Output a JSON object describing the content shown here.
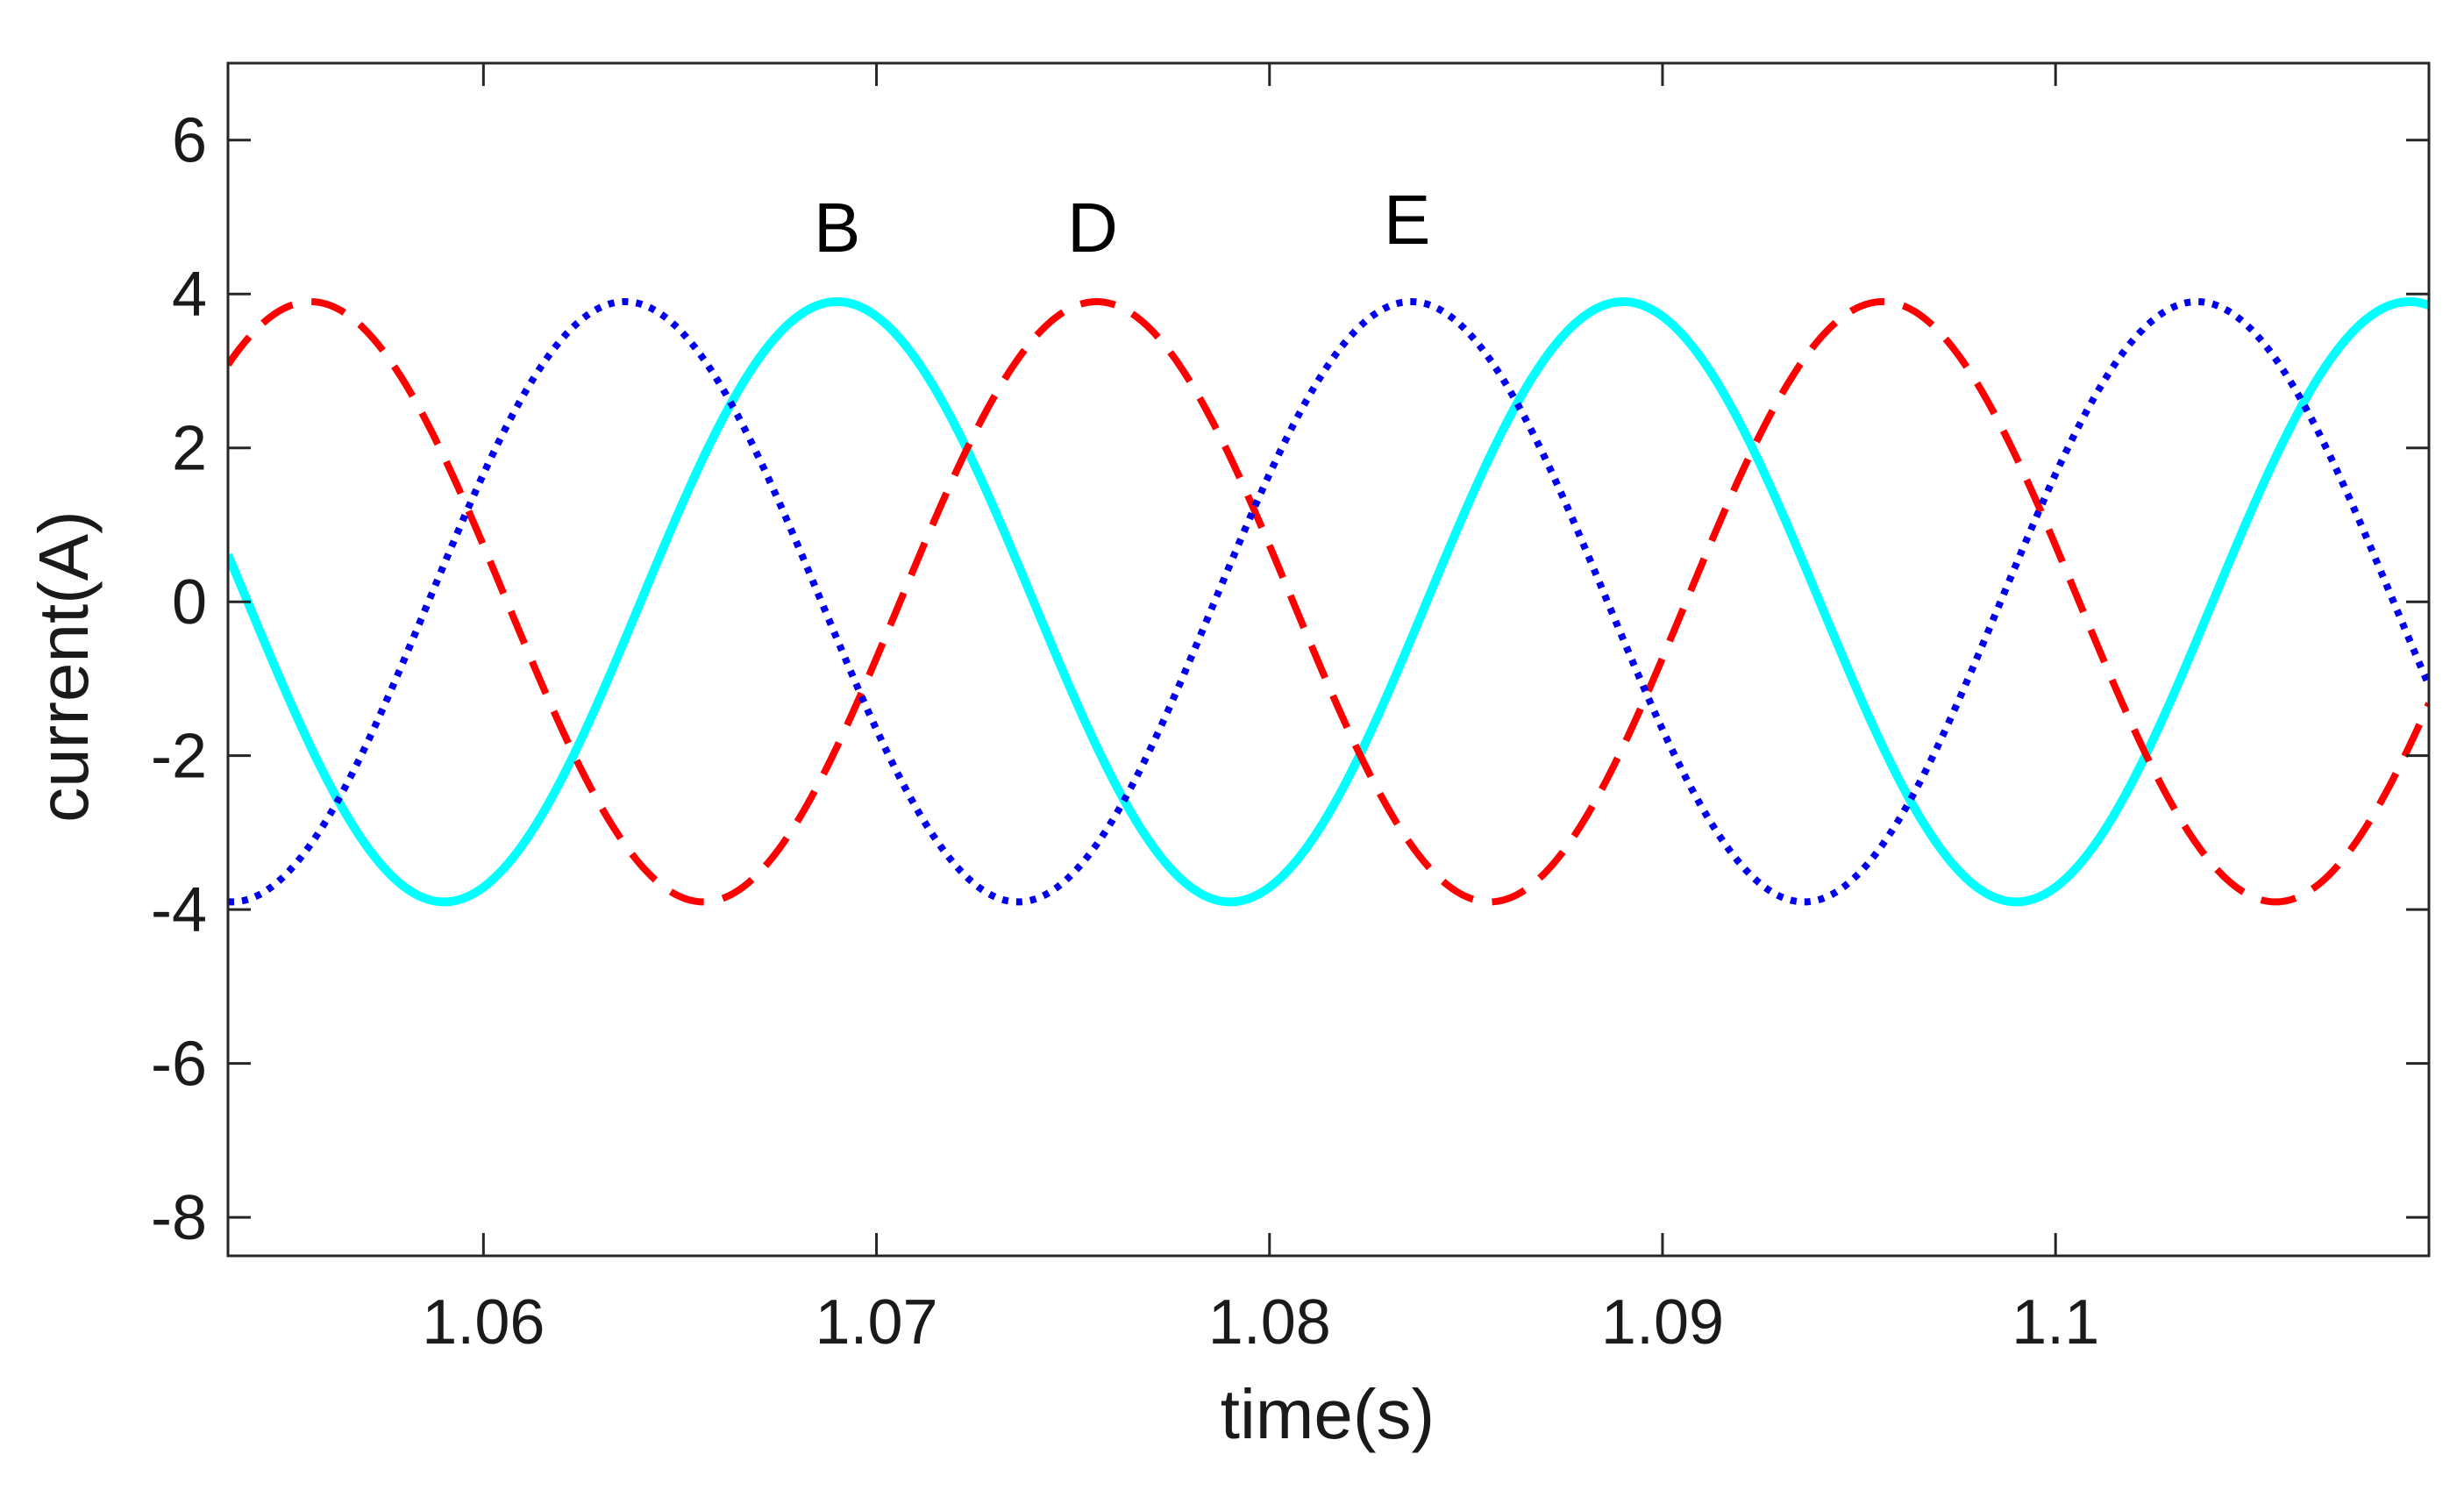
{
  "chart_data": {
    "type": "line",
    "title": "",
    "xlabel": "time(s)",
    "ylabel": "current(A)",
    "xlim": [
      1.0535,
      1.1095
    ],
    "ylim": [
      -8.5,
      7
    ],
    "xticks": [
      1.06,
      1.07,
      1.08,
      1.09,
      1.1
    ],
    "xtick_labels": [
      "1.06",
      "1.07",
      "1.08",
      "1.09",
      "1.1"
    ],
    "yticks": [
      6,
      4,
      2,
      0,
      -2,
      -4,
      -6,
      -8
    ],
    "ytick_labels": [
      "6",
      "4",
      "2",
      "0",
      "-2",
      "-4",
      "-6",
      "-8"
    ],
    "grid": false,
    "series": [
      {
        "name": "B",
        "color": "#00ffff",
        "style": "solid",
        "amplitude": 3.9,
        "frequency_hz": 50,
        "peak_time": 1.069
      },
      {
        "name": "D",
        "color": "#ff0000",
        "style": "dashed",
        "amplitude": 3.9,
        "frequency_hz": 50,
        "peak_time": 1.0756
      },
      {
        "name": "E",
        "color": "#0000ee",
        "style": "dotted",
        "amplitude": 3.9,
        "frequency_hz": 50,
        "peak_time": 1.0836
      }
    ],
    "annotations": [
      {
        "text": "B",
        "x": 1.069,
        "y": 4.55
      },
      {
        "text": "D",
        "x": 1.0755,
        "y": 4.55
      },
      {
        "text": "E",
        "x": 1.0835,
        "y": 4.65
      }
    ]
  }
}
